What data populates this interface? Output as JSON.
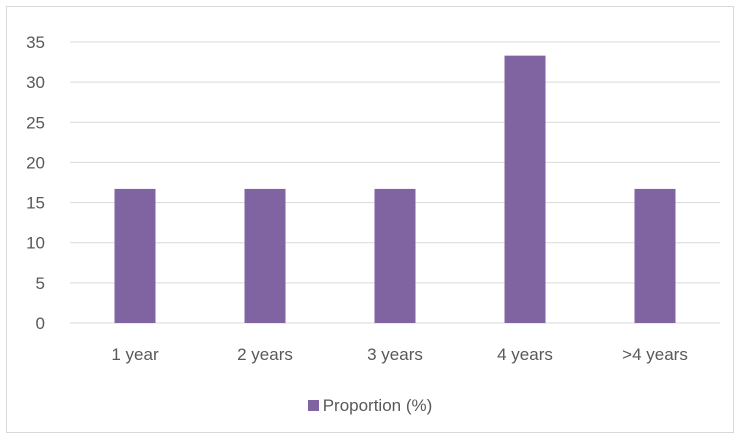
{
  "chart_data": {
    "type": "bar",
    "categories": [
      "1 year",
      "2 years",
      "3  years",
      "4 years",
      ">4 years"
    ],
    "series": [
      {
        "name": "Proportion (%)",
        "values": [
          16.7,
          16.7,
          16.7,
          33.3,
          16.7
        ],
        "color": "#8064a2"
      }
    ],
    "ylim": [
      0,
      35
    ],
    "yticks": [
      0,
      5,
      10,
      15,
      20,
      25,
      30,
      35
    ],
    "grid": true,
    "legend_position": "bottom"
  }
}
